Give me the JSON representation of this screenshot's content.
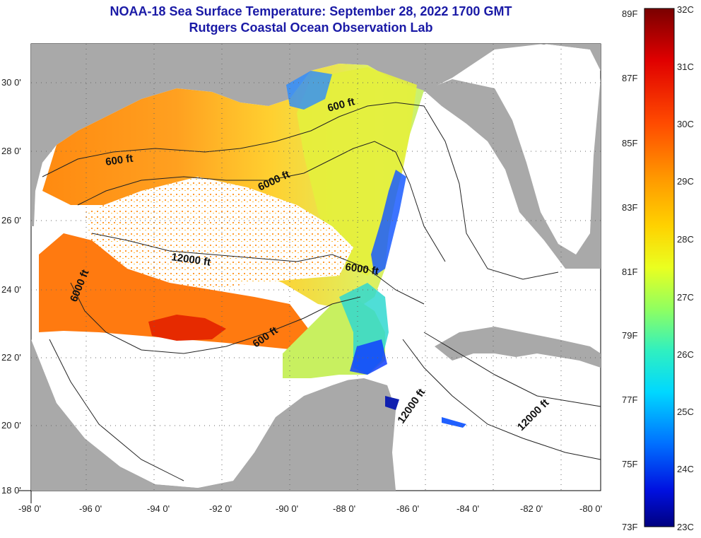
{
  "header": {
    "title": "NOAA-18 Sea Surface Temperature:  September 28, 2022 1700 GMT",
    "subtitle": "Rutgers Coastal Ocean Observation Lab"
  },
  "axes": {
    "lon_ticks": [
      "-98 0'",
      "-96 0'",
      "-94 0'",
      "-92 0'",
      "-90 0'",
      "-88 0'",
      "-86 0'",
      "-84 0'",
      "-82 0'",
      "-80 0'"
    ],
    "lat_ticks": [
      "30 0'",
      "28 0'",
      "26 0'",
      "24 0'",
      "22 0'",
      "20 0'",
      "18 0'"
    ]
  },
  "contour_labels": [
    "600 ft",
    "600 ft",
    "6000 ft",
    "12000 ft",
    "6000 ft",
    "6000 ft",
    "600 ft",
    "12000 ft",
    "12000 ft"
  ],
  "colorbar": {
    "fahrenheit": [
      "89F",
      "87F",
      "85F",
      "83F",
      "81F",
      "79F",
      "77F",
      "75F",
      "73F"
    ],
    "celsius": [
      "32C",
      "31C",
      "30C",
      "29C",
      "28C",
      "27C",
      "26C",
      "25C",
      "24C",
      "23C"
    ],
    "colors": [
      "#8b0000",
      "#e00000",
      "#ff4a00",
      "#ff9000",
      "#ffcf00",
      "#f0ff10",
      "#a8ff50",
      "#40f0b0",
      "#00e0ff",
      "#0090ff",
      "#0030ff",
      "#000088"
    ]
  },
  "colors": {
    "land": "#a9a9a9",
    "cloud_masked_ocean": "#ffffff",
    "title": "#1a1aa6"
  }
}
